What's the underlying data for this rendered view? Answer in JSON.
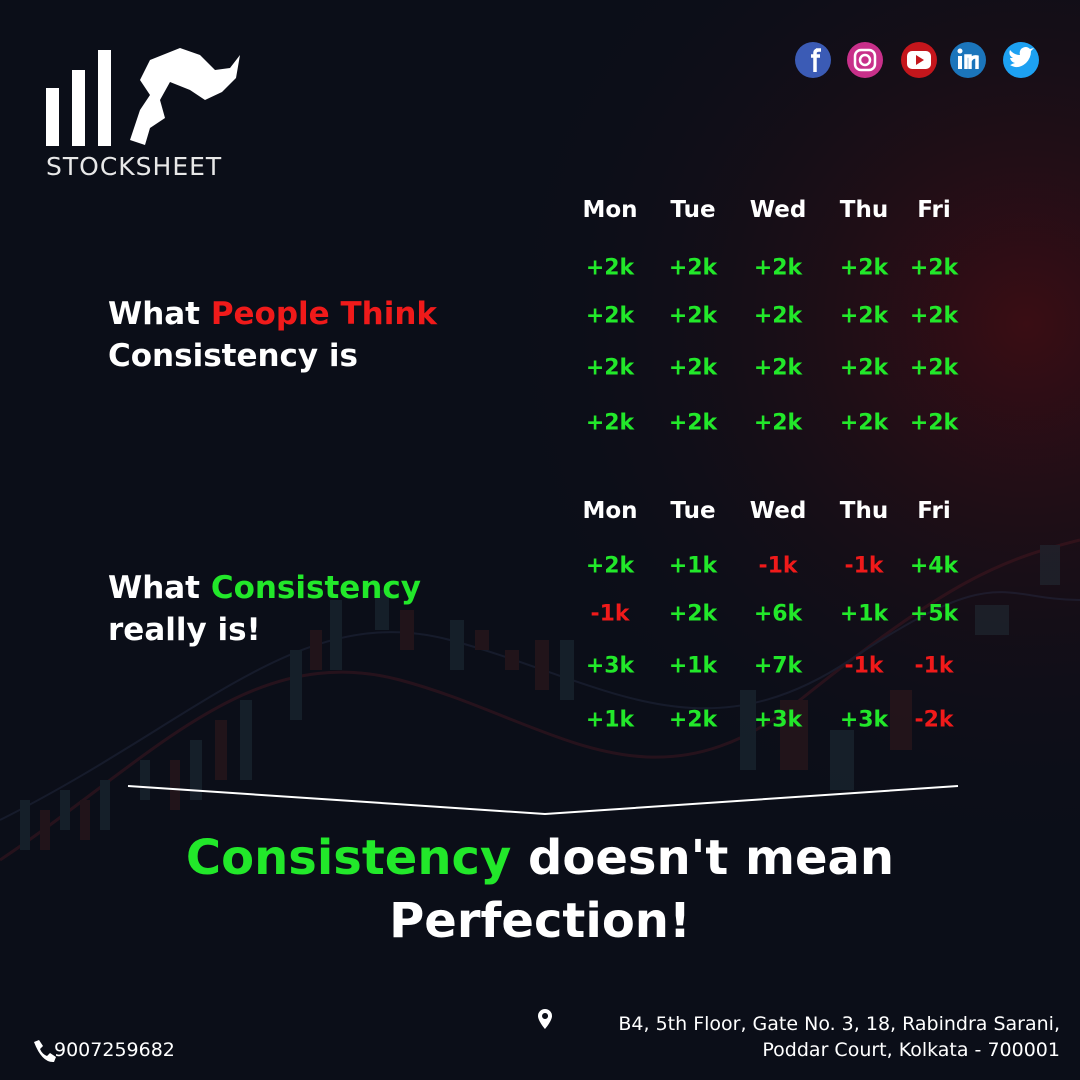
{
  "brand": "STOCKSHEET",
  "sections": [
    {
      "headline": {
        "line1": [
          "What",
          "People Think"
        ],
        "line2": "Consistency is"
      },
      "days": [
        "Mon",
        "Tue",
        "Wed",
        "Thu",
        "Fri"
      ],
      "rows": [
        [
          "+2k",
          "+2k",
          "+2k",
          "+2k",
          "+2k"
        ],
        [
          "+2k",
          "+2k",
          "+2k",
          "+2k",
          "+2k"
        ],
        [
          "+2k",
          "+2k",
          "+2k",
          "+2k",
          "+2k"
        ],
        [
          "+2k",
          "+2k",
          "+2k",
          "+2k",
          "+2k"
        ]
      ]
    },
    {
      "headline": {
        "line1": [
          "What",
          "Consistency"
        ],
        "line2": "really is!"
      },
      "days": [
        "Mon",
        "Tue",
        "Wed",
        "Thu",
        "Fri"
      ],
      "rows": [
        [
          "+2k",
          "+1k",
          "-1k",
          "-1k",
          "+4k"
        ],
        [
          "-1k",
          "+2k",
          "+6k",
          "+1k",
          "+5k"
        ],
        [
          "+3k",
          "+1k",
          "+7k",
          "-1k",
          "-1k"
        ],
        [
          "+1k",
          "+2k",
          "+3k",
          "+3k",
          "-2k"
        ]
      ]
    }
  ],
  "tagline": {
    "line1": [
      "Consistency",
      "doesn't mean"
    ],
    "line2": "Perfection!"
  },
  "footer": {
    "address": [
      "B4, 5th Floor, Gate No. 3, 18, Rabindra Sarani,",
      "Poddar Court, Kolkata - 700001"
    ],
    "phone": "9007259682"
  }
}
